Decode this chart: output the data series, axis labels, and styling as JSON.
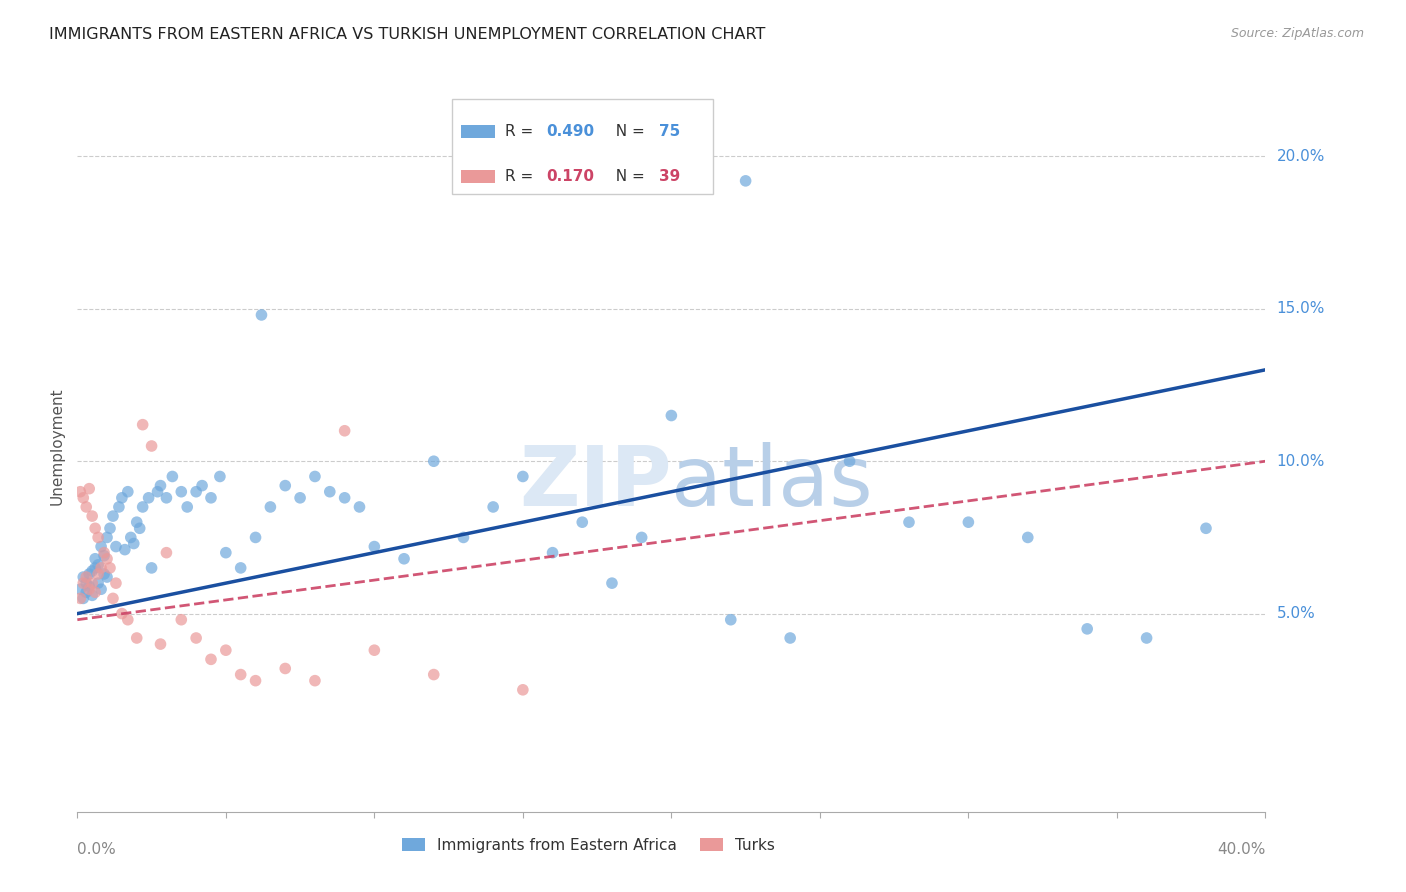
{
  "title": "IMMIGRANTS FROM EASTERN AFRICA VS TURKISH UNEMPLOYMENT CORRELATION CHART",
  "source": "Source: ZipAtlas.com",
  "ylabel": "Unemployment",
  "xlim": [
    0.0,
    0.4
  ],
  "ylim": [
    -0.015,
    0.225
  ],
  "blue_R": "0.490",
  "blue_N": "75",
  "pink_R": "0.170",
  "pink_N": "39",
  "blue_color": "#6fa8dc",
  "pink_color": "#ea9999",
  "blue_line_color": "#1a4fa0",
  "pink_line_color": "#cc4466",
  "legend_label_blue": "Immigrants from Eastern Africa",
  "legend_label_pink": "Turks",
  "ytick_positions": [
    0.05,
    0.1,
    0.15,
    0.2
  ],
  "ytick_labels": [
    "5.0%",
    "10.0%",
    "15.0%",
    "20.0%"
  ],
  "grid_color": "#cccccc",
  "watermark_color": "#dce8f5",
  "blue_line_y0": 0.05,
  "blue_line_y1": 0.13,
  "pink_line_y0": 0.048,
  "pink_line_y1": 0.1,
  "blue_x": [
    0.001,
    0.002,
    0.002,
    0.003,
    0.003,
    0.004,
    0.004,
    0.005,
    0.005,
    0.006,
    0.006,
    0.007,
    0.007,
    0.008,
    0.008,
    0.009,
    0.009,
    0.01,
    0.01,
    0.011,
    0.012,
    0.013,
    0.014,
    0.015,
    0.016,
    0.017,
    0.018,
    0.019,
    0.02,
    0.021,
    0.022,
    0.024,
    0.025,
    0.027,
    0.028,
    0.03,
    0.032,
    0.035,
    0.037,
    0.04,
    0.042,
    0.045,
    0.048,
    0.05,
    0.055,
    0.06,
    0.065,
    0.07,
    0.075,
    0.08,
    0.085,
    0.09,
    0.095,
    0.1,
    0.11,
    0.12,
    0.13,
    0.14,
    0.15,
    0.16,
    0.17,
    0.18,
    0.19,
    0.2,
    0.22,
    0.24,
    0.26,
    0.28,
    0.3,
    0.32,
    0.34,
    0.36,
    0.38,
    0.062,
    0.225
  ],
  "blue_y": [
    0.058,
    0.055,
    0.062,
    0.06,
    0.057,
    0.063,
    0.059,
    0.064,
    0.056,
    0.065,
    0.068,
    0.066,
    0.06,
    0.072,
    0.058,
    0.069,
    0.063,
    0.075,
    0.062,
    0.078,
    0.082,
    0.072,
    0.085,
    0.088,
    0.071,
    0.09,
    0.075,
    0.073,
    0.08,
    0.078,
    0.085,
    0.088,
    0.065,
    0.09,
    0.092,
    0.088,
    0.095,
    0.09,
    0.085,
    0.09,
    0.092,
    0.088,
    0.095,
    0.07,
    0.065,
    0.075,
    0.085,
    0.092,
    0.088,
    0.095,
    0.09,
    0.088,
    0.085,
    0.072,
    0.068,
    0.1,
    0.075,
    0.085,
    0.095,
    0.07,
    0.08,
    0.06,
    0.075,
    0.115,
    0.048,
    0.042,
    0.1,
    0.08,
    0.08,
    0.075,
    0.045,
    0.042,
    0.078,
    0.148,
    0.192
  ],
  "pink_x": [
    0.001,
    0.001,
    0.002,
    0.002,
    0.003,
    0.003,
    0.004,
    0.004,
    0.005,
    0.005,
    0.006,
    0.006,
    0.007,
    0.007,
    0.008,
    0.009,
    0.01,
    0.011,
    0.012,
    0.013,
    0.015,
    0.017,
    0.02,
    0.022,
    0.025,
    0.028,
    0.03,
    0.035,
    0.04,
    0.045,
    0.05,
    0.055,
    0.06,
    0.07,
    0.08,
    0.09,
    0.1,
    0.12,
    0.15
  ],
  "pink_y": [
    0.055,
    0.09,
    0.06,
    0.088,
    0.062,
    0.085,
    0.058,
    0.091,
    0.06,
    0.082,
    0.057,
    0.078,
    0.063,
    0.075,
    0.065,
    0.07,
    0.068,
    0.065,
    0.055,
    0.06,
    0.05,
    0.048,
    0.042,
    0.112,
    0.105,
    0.04,
    0.07,
    0.048,
    0.042,
    0.035,
    0.038,
    0.03,
    0.028,
    0.032,
    0.028,
    0.11,
    0.038,
    0.03,
    0.025
  ]
}
